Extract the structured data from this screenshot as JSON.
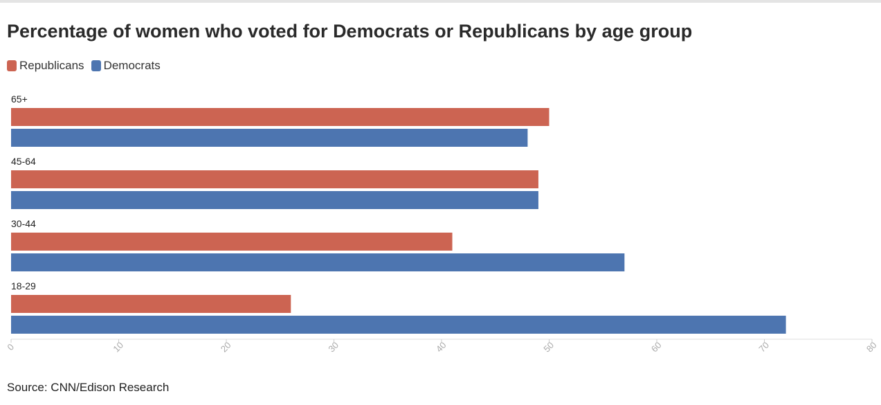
{
  "chart_data": {
    "type": "bar",
    "orientation": "horizontal",
    "title": "Percentage of women who voted for Democrats or Republicans by age group",
    "categories": [
      "65+",
      "45-64",
      "30-44",
      "18-29"
    ],
    "series": [
      {
        "name": "Republicans",
        "color": "#cc6452",
        "values": [
          50,
          49,
          41,
          26
        ]
      },
      {
        "name": "Democrats",
        "color": "#4d75b0",
        "values": [
          48,
          49,
          57,
          72
        ]
      }
    ],
    "xlim": [
      0,
      80
    ],
    "xticks": [
      0,
      10,
      20,
      30,
      40,
      50,
      60,
      70,
      80
    ],
    "grid": false,
    "legend_position": "top-left"
  },
  "source": "Source: CNN/Edison Research"
}
